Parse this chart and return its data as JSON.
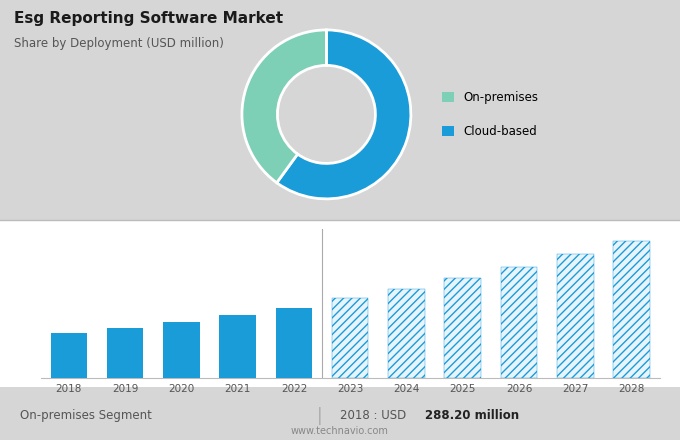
{
  "title": "Esg Reporting Software Market",
  "subtitle": "Share by Deployment (USD million)",
  "bg_color_top": "#d6d6d6",
  "bg_color_bottom": "#ffffff",
  "donut_values": [
    60,
    40
  ],
  "donut_colors": [
    "#1a9cd8",
    "#7dcfb6"
  ],
  "donut_labels": [
    "Cloud-based",
    "On-premises"
  ],
  "legend_colors": [
    "#7dcfb6",
    "#1a9cd8"
  ],
  "legend_labels": [
    "On-premises",
    "Cloud-based"
  ],
  "bar_years": [
    2018,
    2019,
    2020,
    2021,
    2022,
    2023,
    2024,
    2025,
    2026,
    2027,
    2028
  ],
  "bar_values": [
    288.2,
    320,
    355,
    400,
    450,
    510,
    570,
    640,
    710,
    790,
    870
  ],
  "bar_solid_color": "#1a9cd8",
  "bar_hatch_color": "#1a9cd8",
  "solid_count": 5,
  "footer_left": "On-premises Segment",
  "footer_right": "2018 : USD ",
  "footer_bold": "288.20 million",
  "footer_website": "www.technavio.com",
  "ylim": [
    0,
    1000
  ],
  "grid_color": "#cccccc",
  "separator_color": "#bbbbbb"
}
